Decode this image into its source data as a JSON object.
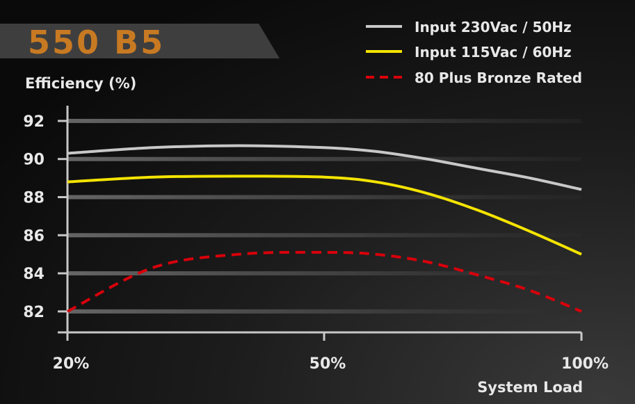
{
  "chart_data": {
    "type": "line",
    "title": "550 B5",
    "ylabel": "Efficiency (%)",
    "xlabel": "System Load",
    "categories": [
      "20%",
      "50%",
      "100%"
    ],
    "x": [
      20,
      50,
      100
    ],
    "ylim": [
      82,
      92
    ],
    "yticks": [
      "92",
      "90",
      "88",
      "86",
      "84",
      "82"
    ],
    "grid": true,
    "legend_position": "top-right",
    "series": [
      {
        "name": "Input 230Vac / 50Hz",
        "color": "#c8c8c8",
        "style": "solid",
        "values": [
          90.3,
          90.6,
          88.4
        ],
        "points": [
          [
            20,
            90.3
          ],
          [
            30,
            90.6
          ],
          [
            40,
            90.7
          ],
          [
            50,
            90.6
          ],
          [
            60,
            90.4
          ],
          [
            70,
            90.0
          ],
          [
            80,
            89.5
          ],
          [
            90,
            89.0
          ],
          [
            100,
            88.4
          ]
        ]
      },
      {
        "name": "Input 115Vac / 60Hz",
        "color": "#f4e400",
        "style": "solid",
        "values": [
          88.8,
          89.1,
          85.0
        ],
        "points": [
          [
            20,
            88.8
          ],
          [
            30,
            89.05
          ],
          [
            40,
            89.1
          ],
          [
            50,
            89.05
          ],
          [
            60,
            88.8
          ],
          [
            70,
            88.2
          ],
          [
            80,
            87.3
          ],
          [
            90,
            86.2
          ],
          [
            100,
            85.0
          ]
        ]
      },
      {
        "name": "80 Plus Bronze Rated",
        "color": "#d8000b",
        "style": "dashed",
        "values": [
          82.0,
          85.1,
          82.0
        ],
        "points": [
          [
            20,
            82.0
          ],
          [
            30,
            84.3
          ],
          [
            40,
            85.0
          ],
          [
            50,
            85.1
          ],
          [
            60,
            85.0
          ],
          [
            70,
            84.6
          ],
          [
            80,
            83.9
          ],
          [
            90,
            83.1
          ],
          [
            100,
            82.0
          ]
        ]
      }
    ]
  }
}
